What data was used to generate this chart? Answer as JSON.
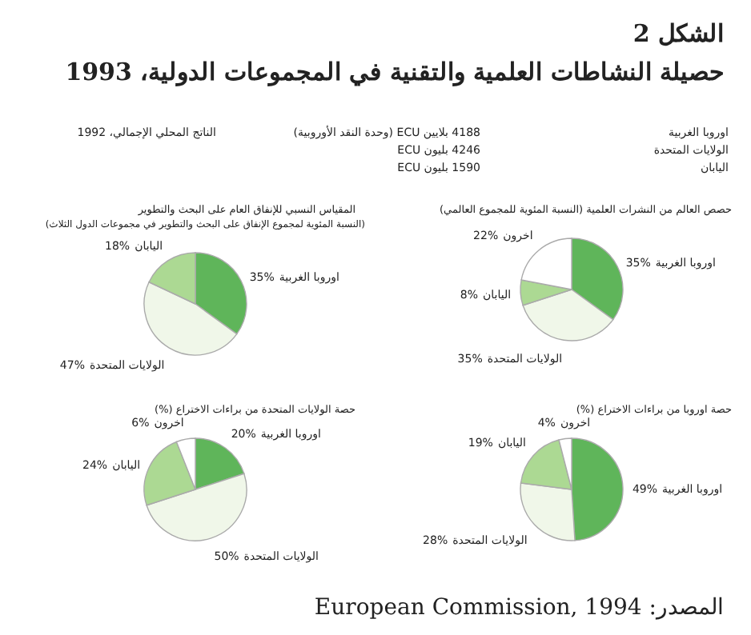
{
  "chart_data": [
    {
      "type": "other",
      "title": "الشكل 2",
      "subtitle": "حصيلة النشاطات العلمية والتقنية في المجموعات الدولية، 1993",
      "annotations": [
        "الناتج المحلي الإجمالي، 1992",
        "اوروبا الغربية",
        "الولايات المتحدة",
        "اليابان",
        "4188 بلايين ECU (وحدة النقد الأوروبية)",
        "4246 بليون ECU",
        "1590 بليون ECU",
        "المصدر: European Commission, 1994"
      ]
    },
    {
      "type": "pie",
      "title": "حصص العالم من النشرات العلمية (النسبة المئوية للمجموع العالمي)",
      "categories": [
        "اوروبا الغربية",
        "الولايات المتحدة",
        "اليابان",
        "اخرون"
      ],
      "values": [
        35,
        35,
        8,
        22
      ],
      "value_labels": [
        "35%",
        "35%",
        "8%",
        "22%"
      ],
      "colors": [
        "#5fb55a",
        "#f0f7e9",
        "#acd993",
        "#ffffff"
      ]
    },
    {
      "type": "pie",
      "title": "المقياس النسبي للإنفاق العام على البحث والتطوير",
      "subtitle": "(النسبة المئوية لمجموع الإنفاق على البحث والتطوير في مجموعات الدول الثلاث)",
      "categories": [
        "اوروبا الغربية",
        "الولايات المتحدة",
        "اليابان"
      ],
      "values": [
        35,
        47,
        18
      ],
      "value_labels": [
        "35%",
        "47%",
        "18%"
      ],
      "colors": [
        "#5fb55a",
        "#f0f7e9",
        "#acd993"
      ]
    },
    {
      "type": "pie",
      "title": "حصة اوروبا من براءات الاختراع (%)",
      "categories": [
        "اوروبا الغربية",
        "الولايات المتحدة",
        "اليابان",
        "اخرون"
      ],
      "values": [
        49,
        28,
        19,
        4
      ],
      "value_labels": [
        "49%",
        "28%",
        "19%",
        "4%"
      ],
      "colors": [
        "#5fb55a",
        "#f0f7e9",
        "#acd993",
        "#ffffff"
      ]
    },
    {
      "type": "pie",
      "title": "حصة الولايات المتحدة من براءات الاختراع (%)",
      "categories": [
        "اوروبا الغربية",
        "الولايات المتحدة",
        "اليابان",
        "اخرون"
      ],
      "values": [
        20,
        50,
        24,
        6
      ],
      "value_labels": [
        "20%",
        "50%",
        "24%",
        "6%"
      ],
      "colors": [
        "#5fb55a",
        "#f0f7e9",
        "#acd993",
        "#ffffff"
      ]
    }
  ]
}
